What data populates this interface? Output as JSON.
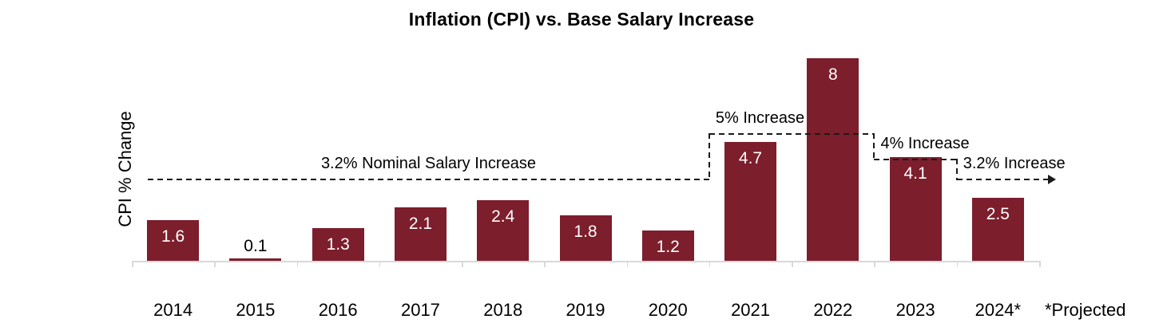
{
  "chart_data": {
    "type": "bar",
    "title": "Inflation (CPI) vs. Base Salary Increase",
    "ylabel": "CPI % Change",
    "xlabel": "",
    "footnote": "*Projected",
    "grid": false,
    "legend": "none",
    "ylim": [
      0,
      8.5
    ],
    "categories": [
      "2014",
      "2015",
      "2016",
      "2017",
      "2018",
      "2019",
      "2020",
      "2021",
      "2022",
      "2023",
      "2024*"
    ],
    "values": [
      1.6,
      0.1,
      1.3,
      2.1,
      2.4,
      1.8,
      1.2,
      4.7,
      8,
      4.1,
      2.5
    ],
    "value_labels": [
      "1.6",
      "0.1",
      "1.3",
      "2.1",
      "2.4",
      "1.8",
      "1.2",
      "4.7",
      "8",
      "4.1",
      "2.5"
    ],
    "outside_label_indices": [
      1
    ],
    "colors": {
      "bar": "#7c1e2c",
      "bar_label_inside": "#ffffff",
      "bar_label_outside": "#000000",
      "axis": "#d9d9d9",
      "dashed_line": "#1a1a1a",
      "text": "#000000",
      "background": "#ffffff"
    },
    "salary_line": {
      "style": "dashed",
      "arrow_end": true,
      "segments": [
        {
          "label": "3.2% Nominal Salary Increase",
          "value": 3.2,
          "from_index": 0,
          "to_index": 6,
          "label_align": "center"
        },
        {
          "label": "5% Increase",
          "value": 5,
          "from_index": 7,
          "to_index": 8,
          "label_align": "start"
        },
        {
          "label": "4% Increase",
          "value": 4,
          "from_index": 9,
          "to_index": 9,
          "label_align": "start"
        },
        {
          "label": "3.2% Increase",
          "value": 3.2,
          "from_index": 10,
          "to_index": 10,
          "label_align": "start"
        }
      ]
    }
  }
}
